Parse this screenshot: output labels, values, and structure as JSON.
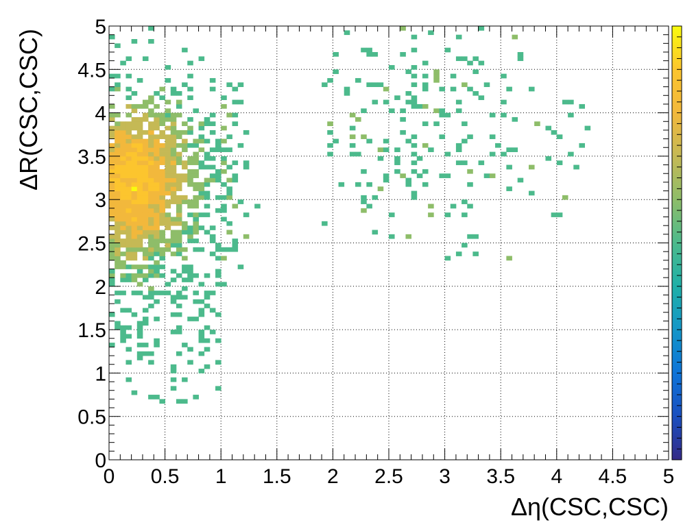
{
  "chart_data": {
    "type": "heatmap",
    "title": "",
    "xlabel": "Δη(CSC,CSC)",
    "ylabel": "ΔR(CSC,CSC)",
    "xlim": [
      0,
      5
    ],
    "ylim": [
      0,
      5
    ],
    "x_ticks": [
      "0",
      "0.5",
      "1",
      "1.5",
      "2",
      "2.5",
      "3",
      "3.5",
      "4",
      "4.5",
      "5"
    ],
    "y_ticks": [
      "0",
      "0.5",
      "1",
      "1.5",
      "2",
      "2.5",
      "3",
      "3.5",
      "4",
      "4.5",
      "5"
    ],
    "bins": {
      "nx": 100,
      "ny": 100,
      "bin_width": 0.05
    },
    "grid": true,
    "color_scale": "log",
    "palette": [
      "#352a87",
      "#1a4fbf",
      "#0d74d9",
      "#1496c8",
      "#1fb0a8",
      "#4cba8c",
      "#8ebd69",
      "#c5b955",
      "#f2b83c",
      "#fcc52e",
      "#f9fb0e"
    ],
    "colorbar": "right",
    "regions": [
      {
        "description": "dense core",
        "x_range": [
          0.0,
          1.0
        ],
        "y_range": [
          0.65,
          4.95
        ],
        "peak": [
          0.2,
          3.2
        ]
      },
      {
        "description": "sparse cluster",
        "x_range": [
          1.9,
          4.45
        ],
        "y_range": [
          2.3,
          5.0
        ]
      }
    ]
  }
}
